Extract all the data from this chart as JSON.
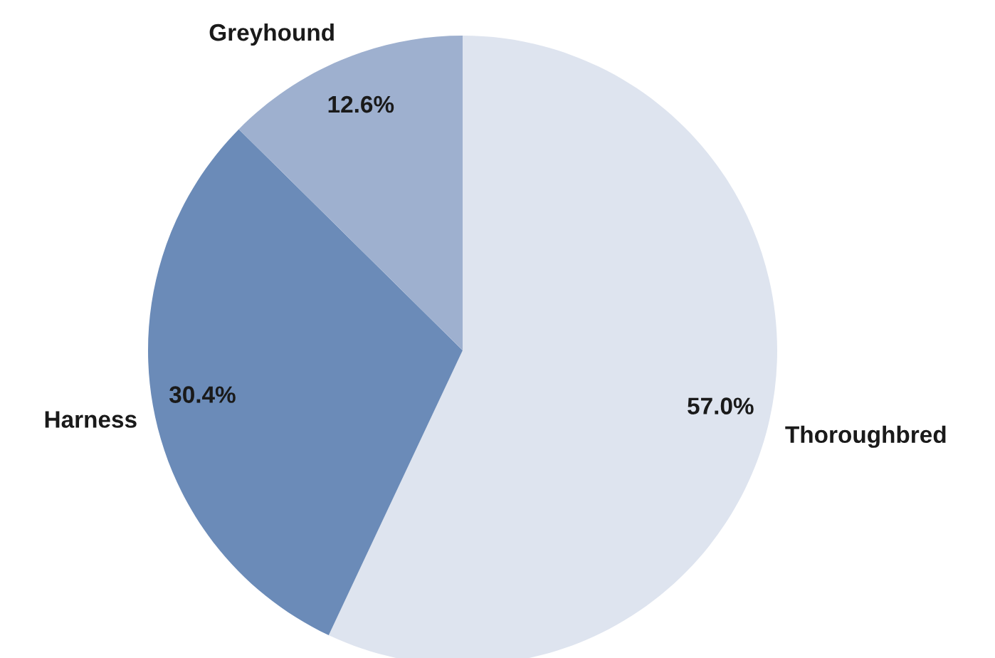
{
  "chart_data": {
    "type": "pie",
    "categories": [
      "Thoroughbred",
      "Harness",
      "Greyhound"
    ],
    "values": [
      57.0,
      30.4,
      12.6
    ],
    "value_labels": [
      "57.0%",
      "30.4%",
      "12.6%"
    ],
    "colors": [
      "#dee4ef",
      "#6b8bb8",
      "#9eb0cf"
    ],
    "legend": false
  }
}
